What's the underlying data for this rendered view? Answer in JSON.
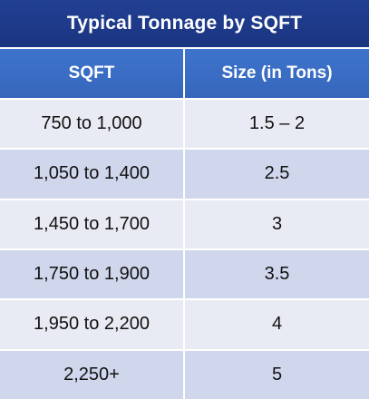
{
  "title": "Typical Tonnage by SQFT",
  "headers": [
    "SQFT",
    "Size (in Tons)"
  ],
  "rows": [
    {
      "sqft": "750 to 1,000",
      "tons": "1.5 – 2"
    },
    {
      "sqft": "1,050 to 1,400",
      "tons": "2.5"
    },
    {
      "sqft": "1,450 to 1,700",
      "tons": "3"
    },
    {
      "sqft": "1,750 to 1,900",
      "tons": "3.5"
    },
    {
      "sqft": "1,950 to 2,200",
      "tons": "4"
    },
    {
      "sqft": "2,250+",
      "tons": "5"
    }
  ],
  "colors": {
    "title_bg": "#1f3a8a",
    "header_bg": "#3a6cc4",
    "row_light": "#e9ebf4",
    "row_dark": "#d0d6ec"
  }
}
